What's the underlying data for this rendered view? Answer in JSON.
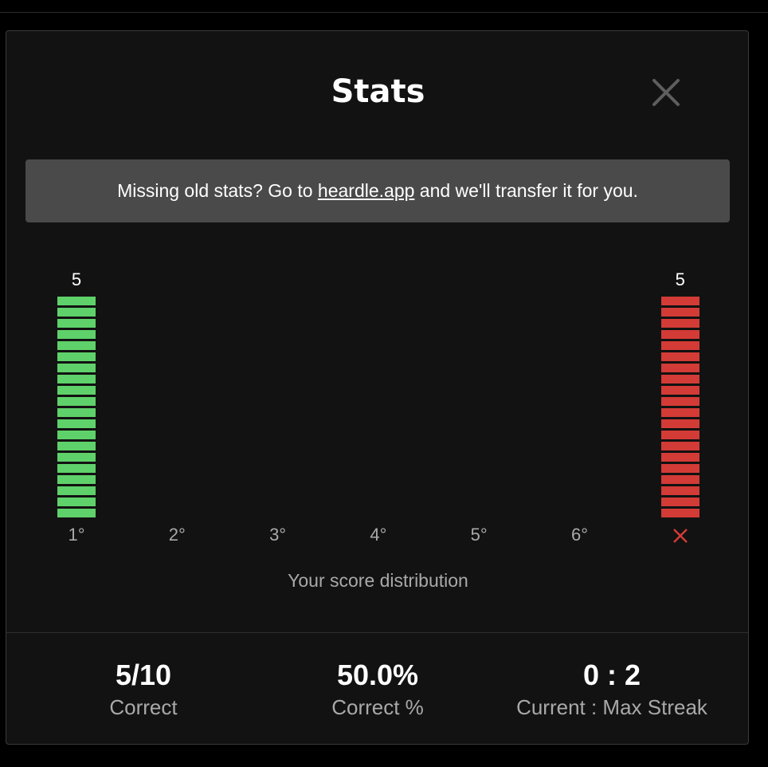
{
  "modal": {
    "title": "Stats",
    "close_icon": "close-icon",
    "banner": {
      "prefix": "Missing old stats? Go to ",
      "link_text": "heardle.app",
      "suffix": " and we'll transfer it for you."
    }
  },
  "chart_data": {
    "type": "bar",
    "categories": [
      "1°",
      "2°",
      "3°",
      "4°",
      "5°",
      "6°",
      "✕"
    ],
    "values": [
      5,
      0,
      0,
      0,
      0,
      0,
      5
    ],
    "title": "",
    "xlabel": "Your score distribution",
    "ylabel": "",
    "colors": {
      "correct": "#5fd16a",
      "failed": "#d33b36",
      "fail_icon": "#d33b36"
    },
    "segments_per_bar_at_max": 20
  },
  "stats": [
    {
      "value": "5/10",
      "label": "Correct"
    },
    {
      "value": "50.0%",
      "label": "Correct %"
    },
    {
      "value": "0 : 2",
      "label": "Current : Max Streak"
    }
  ]
}
